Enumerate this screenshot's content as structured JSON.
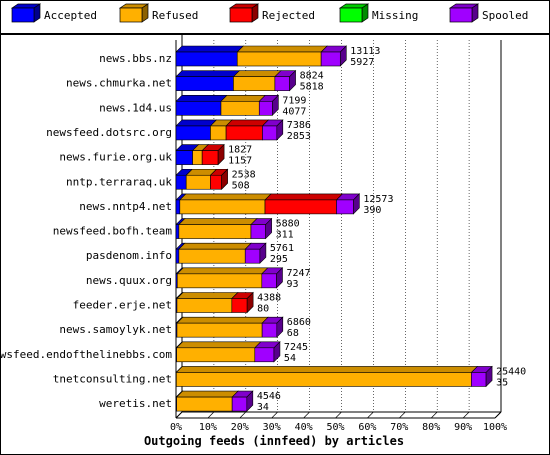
{
  "chart_data": {
    "type": "bar",
    "orientation": "horizontal",
    "stacked": true,
    "title": "Outgoing feeds (innfeed) by articles",
    "xlabel": "Outgoing feeds (innfeed) by articles",
    "ylabel": "",
    "xlim": [
      0,
      100
    ],
    "x_ticks": [
      "0%",
      "10%",
      "20%",
      "30%",
      "40%",
      "50%",
      "60%",
      "70%",
      "80%",
      "90%",
      "100%"
    ],
    "grid": true,
    "legend_position": "top",
    "legend": [
      {
        "name": "Accepted",
        "color": "#0000ff"
      },
      {
        "name": "Refused",
        "color": "#ffb000"
      },
      {
        "name": "Rejected",
        "color": "#ff0000"
      },
      {
        "name": "Missing",
        "color": "#00ff00"
      },
      {
        "name": "Spooled",
        "color": "#a000ff"
      }
    ],
    "categories": [
      "news.bbs.nz",
      "news.chmurka.net",
      "news.1d4.us",
      "newsfeed.dotsrc.org",
      "news.furie.org.uk",
      "nntp.terraraq.uk",
      "news.nntp4.net",
      "newsfeed.bofh.team",
      "pasdenom.info",
      "news.quux.org",
      "feeder.erje.net",
      "news.samoylyk.net",
      "newsfeed.endofthelinebbs.com",
      "tnetconsulting.net",
      "weretis.net"
    ],
    "labels_top": [
      "13113",
      "8824",
      "7199",
      "7386",
      "1827",
      "2538",
      "12573",
      "5880",
      "5761",
      "7247",
      "4388",
      "6860",
      "7245",
      "25440",
      "4546"
    ],
    "labels_bottom": [
      "5927",
      "5818",
      "4077",
      "2853",
      "1157",
      "508",
      "390",
      "311",
      "295",
      "93",
      "80",
      "68",
      "54",
      "35",
      "34"
    ],
    "series": [
      {
        "name": "Accepted",
        "color": "#0000ff",
        "values": [
          19.2,
          18.0,
          14.1,
          10.8,
          5.2,
          3.2,
          1.2,
          0.9,
          0.9,
          0.4,
          0.3,
          0.3,
          0.2,
          0.1,
          0.2
        ]
      },
      {
        "name": "Refused",
        "color": "#ffb000",
        "values": [
          26.3,
          13.0,
          12.0,
          4.9,
          3.0,
          7.6,
          26.7,
          22.6,
          20.8,
          26.5,
          17.2,
          26.7,
          24.5,
          92.5,
          17.4
        ]
      },
      {
        "name": "Rejected",
        "color": "#ff0000",
        "values": [
          0,
          0,
          0,
          11.4,
          5.0,
          3.5,
          22.4,
          0,
          0,
          0,
          4.8,
          0,
          0,
          0,
          0
        ]
      },
      {
        "name": "Missing",
        "color": "#00ff00",
        "values": [
          0,
          0,
          0,
          0,
          0,
          0,
          0,
          0,
          0,
          0,
          0,
          0,
          0,
          0,
          0
        ]
      },
      {
        "name": "Spooled",
        "color": "#a000ff",
        "values": [
          6.0,
          4.6,
          4.1,
          4.5,
          0,
          0,
          5.3,
          4.6,
          4.6,
          4.6,
          0,
          4.6,
          6.0,
          4.6,
          4.6
        ]
      }
    ]
  }
}
